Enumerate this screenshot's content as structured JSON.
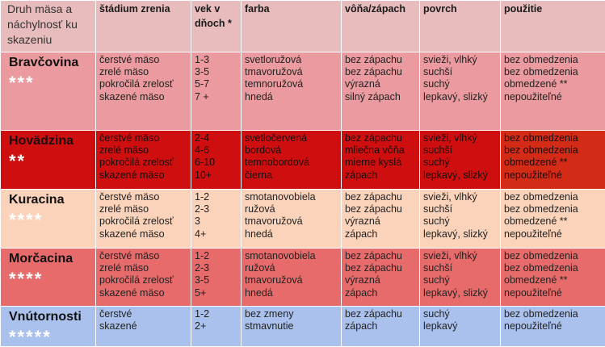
{
  "headers": [
    "Druh mäsa a náchylnosť ku skazeniu",
    "štádium zrenia",
    "vek v dňoch *",
    "farba",
    "vôňa/zápach",
    "povrch",
    "použitie"
  ],
  "rows": [
    {
      "name": "Bravčovina",
      "stars": "***",
      "stage": [
        "čerstvé mäso",
        "zrelé mäso",
        "pokročilá zrelosť",
        "skazené mäso"
      ],
      "age": [
        "1-3",
        "3-5",
        "5-7",
        "7 +"
      ],
      "color": [
        "svetloružová",
        "tmavoružová",
        "temnoružová",
        "hnedá"
      ],
      "smell": [
        "bez zápachu",
        "bez zápachu",
        "výrazná",
        "silný zápach"
      ],
      "surface": [
        "svieži, vlhký",
        "suchší",
        "suchý",
        "lepkavý, slizký"
      ],
      "use": [
        "bez obmedzenia",
        "bez obmedzenia",
        "obmedzené **",
        "nepoužiteľné"
      ]
    },
    {
      "name": "Hovädzina",
      "stars": "**",
      "stage": [
        "čerstvé mäso",
        "zrelé mäso",
        "pokročilá zrelosť",
        "skazené mäso"
      ],
      "age": [
        "2-4",
        "4-6",
        "6-10",
        "10+"
      ],
      "color": [
        "svetločervená",
        "bordová",
        "temnobordová",
        "čierna"
      ],
      "smell": [
        "bez zápachu",
        "mliečna vôňa",
        "mierne kyslá",
        "zápach"
      ],
      "surface": [
        "svieži, vlhký",
        "suchší",
        "suchý",
        "lepkavý, slizký"
      ],
      "use": [
        "bez obmedzenia",
        "bez obmedzenia",
        "obmedzené **",
        "nepoužiteľné"
      ]
    },
    {
      "name": "Kuracina",
      "stars": "****",
      "stage": [
        "čerstvé mäso",
        "zrelé mäso",
        "pokročilá zrelosť",
        "skazené mäso"
      ],
      "age": [
        "1-2",
        "2-3",
        "3",
        "4+"
      ],
      "color": [
        "smotanovobiela",
        "ružová",
        "tmavoružová",
        "hnedá"
      ],
      "smell": [
        "bez zápachu",
        "bez zápachu",
        "výrazná",
        "zápach"
      ],
      "surface": [
        "svieži, vlhký",
        "suchší",
        "suchý",
        "lepkavý, slizký"
      ],
      "use": [
        "bez obmedzenia",
        "bez obmedzenia",
        "obmedzené **",
        "nepoužiteľné"
      ]
    },
    {
      "name": "Morčacina",
      "stars": "****",
      "stage": [
        "čerstvé mäso",
        "zrelé mäso",
        "pokročilá zrelosť",
        "skazené mäso"
      ],
      "age": [
        "1-2",
        "2-3",
        "3-5",
        "5+"
      ],
      "color": [
        "smotanovobiela",
        "ružová",
        "tmavoružová",
        "hnedá"
      ],
      "smell": [
        "bez zápachu",
        "bez zápachu",
        "výrazná",
        "zápach"
      ],
      "surface": [
        "svieži, vlhký",
        "suchší",
        "suchý",
        "lepkavý, slizký"
      ],
      "use": [
        "bez obmedzenia",
        "bez obmedzenia",
        "obmedzené **",
        "nepoužiteľné"
      ]
    },
    {
      "name": "Vnútornosti",
      "stars": "*****",
      "stage": [
        "čerstvé",
        "skazené"
      ],
      "age": [
        "1-2",
        "2+"
      ],
      "color": [
        "bez zmeny",
        "stmavnutie"
      ],
      "smell": [
        "bez zápachu",
        "zápach"
      ],
      "surface": [
        "suchý",
        "lepkavý"
      ],
      "use": [
        "bez obmedzenia",
        "nepoužiteľné"
      ]
    }
  ],
  "colors": {
    "header": "#e8bcbc",
    "pork": "#eb9aa0",
    "beef": "#cf0f0f",
    "chicken": "#fbd3bb",
    "turkey": "#e76b6b",
    "offal": "#a9c1ec"
  }
}
